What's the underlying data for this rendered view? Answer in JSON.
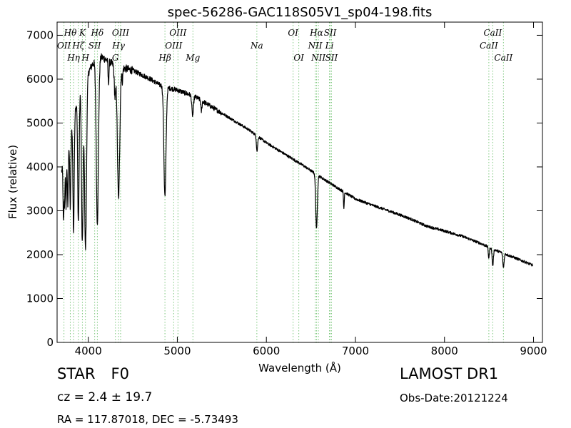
{
  "chart_data": {
    "type": "line",
    "title": "spec-56286-GAC118S05V1_sp04-198.fits",
    "xlabel": "Wavelength (Å)",
    "ylabel": "Flux (relative)",
    "xlim": [
      3650,
      9100
    ],
    "ylim": [
      0,
      7300
    ],
    "xticks": [
      4000,
      5000,
      6000,
      7000,
      8000,
      9000
    ],
    "yticks": [
      0,
      1000,
      2000,
      3000,
      4000,
      5000,
      6000,
      7000
    ],
    "grid": false,
    "line_color": "#000000",
    "marker_color": "#7fc87f",
    "continuum": [
      [
        3700,
        3900
      ],
      [
        3750,
        4200
      ],
      [
        3800,
        4700
      ],
      [
        3850,
        5300
      ],
      [
        3900,
        5750
      ],
      [
        3950,
        5950
      ],
      [
        4000,
        6150
      ],
      [
        4050,
        6350
      ],
      [
        4100,
        6450
      ],
      [
        4150,
        6500
      ],
      [
        4200,
        6450
      ],
      [
        4300,
        6300
      ],
      [
        4400,
        6250
      ],
      [
        4500,
        6200
      ],
      [
        4600,
        6100
      ],
      [
        4700,
        6000
      ],
      [
        4800,
        5870
      ],
      [
        4900,
        5800
      ],
      [
        5000,
        5750
      ],
      [
        5200,
        5600
      ],
      [
        5400,
        5350
      ],
      [
        5600,
        5100
      ],
      [
        5800,
        4850
      ],
      [
        6000,
        4550
      ],
      [
        6200,
        4300
      ],
      [
        6400,
        4050
      ],
      [
        6600,
        3780
      ],
      [
        6800,
        3520
      ],
      [
        7000,
        3270
      ],
      [
        7200,
        3120
      ],
      [
        7400,
        2980
      ],
      [
        7600,
        2830
      ],
      [
        7800,
        2650
      ],
      [
        8000,
        2540
      ],
      [
        8200,
        2420
      ],
      [
        8400,
        2260
      ],
      [
        8600,
        2080
      ],
      [
        8800,
        1920
      ],
      [
        8990,
        1760
      ]
    ],
    "absorption": [
      {
        "wavelength": 3722,
        "depth": 1300,
        "width": 5
      },
      {
        "wavelength": 3734,
        "depth": 900,
        "width": 4
      },
      {
        "wavelength": 3750,
        "depth": 1100,
        "width": 5
      },
      {
        "wavelength": 3770,
        "depth": 1300,
        "width": 5
      },
      {
        "wavelength": 3798,
        "depth": 1600,
        "width": 6
      },
      {
        "wavelength": 3835,
        "depth": 2600,
        "width": 7
      },
      {
        "wavelength": 3889,
        "depth": 2900,
        "width": 8
      },
      {
        "wavelength": 3933,
        "depth": 3600,
        "width": 9
      },
      {
        "wavelength": 3969,
        "depth": 3900,
        "width": 11
      },
      {
        "wavelength": 4102,
        "depth": 3700,
        "width": 12
      },
      {
        "wavelength": 4227,
        "depth": 500,
        "width": 5
      },
      {
        "wavelength": 4300,
        "depth": 700,
        "width": 8
      },
      {
        "wavelength": 4340,
        "depth": 3000,
        "width": 13
      },
      {
        "wavelength": 4383,
        "depth": 300,
        "width": 5
      },
      {
        "wavelength": 4861,
        "depth": 2500,
        "width": 12
      },
      {
        "wavelength": 5172,
        "depth": 450,
        "width": 9
      },
      {
        "wavelength": 5270,
        "depth": 250,
        "width": 6
      },
      {
        "wavelength": 5895,
        "depth": 350,
        "width": 7
      },
      {
        "wavelength": 6563,
        "depth": 1250,
        "width": 9
      },
      {
        "wavelength": 6870,
        "depth": 380,
        "width": 4
      },
      {
        "wavelength": 8498,
        "depth": 250,
        "width": 6
      },
      {
        "wavelength": 8542,
        "depth": 380,
        "width": 7
      },
      {
        "wavelength": 8662,
        "depth": 330,
        "width": 7
      }
    ],
    "line_markers": [
      {
        "label": "OII",
        "wavelength": 3727,
        "row": 2
      },
      {
        "label": "Hθ",
        "wavelength": 3798,
        "row": 1
      },
      {
        "label": "Hη",
        "wavelength": 3835,
        "row": 3
      },
      {
        "label": "Hζ",
        "wavelength": 3889,
        "row": 2
      },
      {
        "label": "K",
        "wavelength": 3934,
        "row": 1
      },
      {
        "label": "SII",
        "wavelength": 4072,
        "row": 2
      },
      {
        "label": "H",
        "wavelength": 3968,
        "row": 3
      },
      {
        "label": "Hδ",
        "wavelength": 4102,
        "row": 1
      },
      {
        "label": "OIII",
        "wavelength": 4363,
        "row": 1
      },
      {
        "label": "Hγ",
        "wavelength": 4340,
        "row": 2
      },
      {
        "label": "G",
        "wavelength": 4305,
        "row": 3
      },
      {
        "label": "OIII",
        "wavelength": 5007,
        "row": 1
      },
      {
        "label": "OIII",
        "wavelength": 4959,
        "row": 2
      },
      {
        "label": "Hβ",
        "wavelength": 4861,
        "row": 3
      },
      {
        "label": "Mg",
        "wavelength": 5175,
        "row": 3
      },
      {
        "label": "Na",
        "wavelength": 5893,
        "row": 2
      },
      {
        "label": "OI",
        "wavelength": 6300,
        "row": 1
      },
      {
        "label": "OI",
        "wavelength": 6364,
        "row": 3
      },
      {
        "label": "Hα",
        "wavelength": 6563,
        "row": 1
      },
      {
        "label": "SII",
        "wavelength": 6716,
        "row": 1
      },
      {
        "label": "NII",
        "wavelength": 6548,
        "row": 2
      },
      {
        "label": "Li",
        "wavelength": 6708,
        "row": 2
      },
      {
        "label": "NII",
        "wavelength": 6584,
        "row": 3
      },
      {
        "label": "SII",
        "wavelength": 6731,
        "row": 3
      },
      {
        "label": "CaII",
        "wavelength": 8542,
        "row": 1
      },
      {
        "label": "CaII",
        "wavelength": 8498,
        "row": 2
      },
      {
        "label": "CaII",
        "wavelength": 8662,
        "row": 3
      }
    ]
  },
  "object_info": {
    "object_type": "STAR",
    "subclass": "F0",
    "cz_text": "cz = 2.4 ± 19.7",
    "radec_text": "RA = 117.87018, DEC = -5.73493",
    "survey": "LAMOST DR1",
    "obs_date_text": "Obs-Date:20121224"
  }
}
